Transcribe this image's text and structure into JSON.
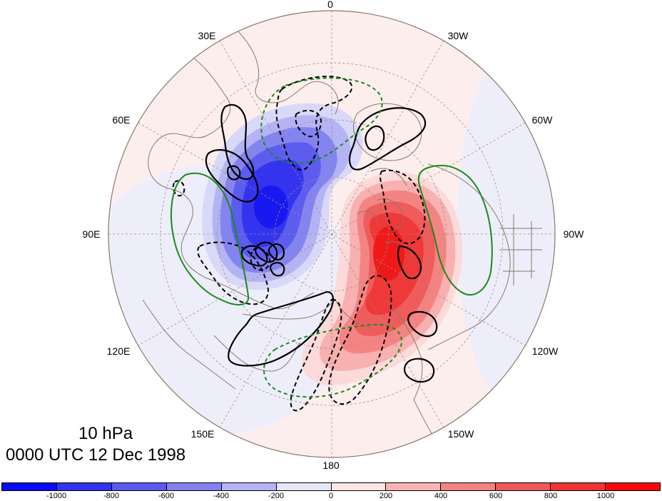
{
  "figure": {
    "level": "10 hPa",
    "time": "0000 UTC 12 Dec 1998"
  },
  "map": {
    "projection": "polar-stereographic-north",
    "longitude_labels": [
      "0",
      "30W",
      "60W",
      "90W",
      "120W",
      "150W",
      "180",
      "150E",
      "120E",
      "90E",
      "60E",
      "30E"
    ],
    "colors": {
      "coast": "#8b7766",
      "grid": "#a08c78",
      "positive_contour": "#000000",
      "negative_contour": "#000000",
      "green_contour": "#1a8a1a",
      "green_dashed_contour": "#1a8a1a"
    },
    "features": [
      {
        "name": "blue-anomaly",
        "sign": "negative",
        "peak_value": -1000,
        "location": "Siberia / Kara Sea"
      },
      {
        "name": "red-anomaly",
        "sign": "positive",
        "peak_value": 1000,
        "location": "Canadian Arctic / Alaska"
      }
    ]
  },
  "colorbar": {
    "colors": [
      "#0a0af5",
      "#3232f0",
      "#5a5aee",
      "#8282f0",
      "#b4b4f5",
      "#e6e6fa",
      "#fde6e6",
      "#f8b4b4",
      "#f38282",
      "#ee5a5a",
      "#f03232",
      "#f50a0a"
    ],
    "ticks": [
      "-1000",
      "-800",
      "-600",
      "-400",
      "-200",
      "0",
      "200",
      "400",
      "600",
      "800",
      "1000"
    ]
  }
}
